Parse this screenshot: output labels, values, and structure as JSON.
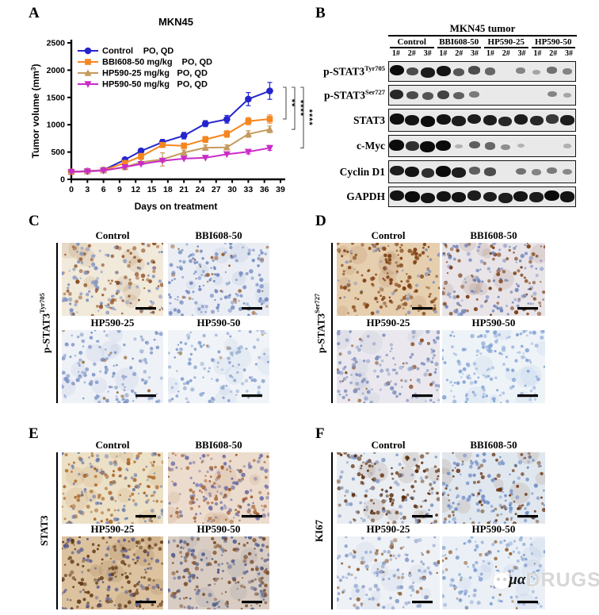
{
  "figure": {
    "panels": {
      "a": "A",
      "b": "B",
      "c": "C",
      "d": "D",
      "e": "E",
      "f": "F"
    },
    "watermark": {
      "logo": "panda-logo",
      "mu": "µα",
      "drugs": "DRUGS"
    }
  },
  "chart_data": {
    "type": "line",
    "title": "MKN45",
    "xlabel": "Days on treatment",
    "ylabel": {
      "pre": "Tumor volume (mm",
      "sup": "3",
      "post": ")"
    },
    "xticks": [
      0,
      3,
      6,
      9,
      12,
      15,
      18,
      21,
      24,
      27,
      30,
      33,
      36,
      39
    ],
    "yticks": [
      0,
      500,
      1000,
      1500,
      2000,
      2500
    ],
    "xlim": [
      0,
      39
    ],
    "ylim": [
      0,
      2500
    ],
    "x": [
      0,
      3,
      6,
      10,
      13,
      17,
      21,
      25,
      29,
      33,
      37
    ],
    "series": [
      {
        "name": "Control",
        "route": "PO, QD",
        "color": "#2424cf",
        "marker": "circle",
        "values": [
          140,
          150,
          170,
          360,
          520,
          680,
          800,
          1020,
          1100,
          1470,
          1620
        ],
        "errors": [
          10,
          10,
          12,
          30,
          45,
          50,
          60,
          55,
          70,
          120,
          155
        ]
      },
      {
        "name": "BBI608-50 mg/kg",
        "route": "PO, QD",
        "color": "#f6861f",
        "marker": "square",
        "values": [
          138,
          148,
          168,
          300,
          420,
          630,
          615,
          730,
          830,
          1065,
          1105
        ],
        "errors": [
          10,
          10,
          12,
          28,
          55,
          45,
          50,
          55,
          60,
          65,
          75
        ]
      },
      {
        "name": "HP590-25 mg/kg",
        "route": "PO, QD",
        "color": "#c59a5d",
        "marker": "triangle-up",
        "values": [
          136,
          148,
          165,
          225,
          315,
          365,
          490,
          580,
          585,
          830,
          915
        ],
        "errors": [
          8,
          10,
          10,
          22,
          30,
          120,
          45,
          50,
          45,
          60,
          60
        ]
      },
      {
        "name": "HP590-50 mg/kg",
        "route": "PO, QD",
        "color": "#ca2cc8",
        "marker": "triangle-down",
        "values": [
          135,
          145,
          160,
          225,
          280,
          340,
          380,
          395,
          460,
          505,
          575
        ],
        "errors": [
          8,
          8,
          10,
          18,
          22,
          28,
          30,
          32,
          35,
          40,
          45
        ]
      }
    ],
    "significance": [
      {
        "label": "**",
        "to_series": 1
      },
      {
        "label": "****",
        "to_series": 2
      },
      {
        "label": "****",
        "to_series": 3
      }
    ],
    "legend_position": "top-left",
    "grid": false
  },
  "blot": {
    "title": "MKN45 tumor",
    "groups": [
      "Control",
      "BBI608-50",
      "HP590-25",
      "HP590-50"
    ],
    "lanes": [
      "1#",
      "2#",
      "3#"
    ],
    "rows": [
      {
        "label": "p-STAT3",
        "sup": "Tyr705",
        "bands": [
          0.95,
          0.6,
          0.85,
          0.9,
          0.55,
          0.6,
          0.45,
          0.0,
          0.3,
          0.12,
          0.4,
          0.3
        ]
      },
      {
        "label": "p-STAT3",
        "sup": "Ser727",
        "bands": [
          0.8,
          0.6,
          0.55,
          0.65,
          0.5,
          0.35,
          0,
          0,
          0,
          0,
          0.3,
          0.12
        ]
      },
      {
        "label": "STAT3",
        "sup": "",
        "bands": [
          0.92,
          0.9,
          0.95,
          0.9,
          0.85,
          0.85,
          0.85,
          0.8,
          0.85,
          0.8,
          0.7,
          0.85
        ]
      },
      {
        "label": "c-Myc",
        "sup": "",
        "bands": [
          1,
          0.75,
          1,
          0.95,
          0.06,
          0.5,
          0.45,
          0.25,
          0.05,
          0,
          0,
          0.06
        ]
      },
      {
        "label": "Cyclin D1",
        "sup": "",
        "bands": [
          0.85,
          0.9,
          0.75,
          0.95,
          0.85,
          0.5,
          0.6,
          0,
          0.4,
          0.3,
          0.35,
          0.28
        ]
      },
      {
        "label": "GAPDH",
        "sup": "",
        "bands": [
          0.9,
          0.95,
          0.9,
          0.9,
          0.9,
          0.85,
          0.85,
          0.85,
          0.9,
          0.85,
          0.95,
          0.9
        ]
      }
    ]
  },
  "ihc_panels": [
    {
      "id": "c",
      "letter": "C",
      "side_label": {
        "base": "p-STAT3",
        "sup": "Tyr705"
      },
      "tiles": [
        {
          "label": "Control",
          "bg": "#f1e9d9",
          "dots": [
            {
              "color": "#8a4a1e",
              "ratio": 0.5
            },
            {
              "color": "#7c8fc2",
              "ratio": 0.5
            }
          ],
          "count": 175
        },
        {
          "label": "BBI608-50",
          "bg": "#eaeef4",
          "dots": [
            {
              "color": "#6e86bf",
              "ratio": 0.85
            },
            {
              "color": "#96592a",
              "ratio": 0.15
            }
          ],
          "count": 170
        },
        {
          "label": "HP590-25",
          "bg": "#eef1f6",
          "dots": [
            {
              "color": "#7d94c6",
              "ratio": 0.92
            },
            {
              "color": "#9a6a3a",
              "ratio": 0.08
            }
          ],
          "count": 140
        },
        {
          "label": "HP590-50",
          "bg": "#f0f4f8",
          "dots": [
            {
              "color": "#87a0cd",
              "ratio": 0.97
            },
            {
              "color": "#a07844",
              "ratio": 0.03
            }
          ],
          "count": 120
        }
      ]
    },
    {
      "id": "d",
      "letter": "D",
      "side_label": {
        "base": "p-STAT3",
        "sup": "Ser727"
      },
      "tiles": [
        {
          "label": "Control",
          "bg": "#e6cfae",
          "dots": [
            {
              "color": "#7c3e10",
              "ratio": 0.8
            },
            {
              "color": "#8794bd",
              "ratio": 0.2
            }
          ],
          "count": 195
        },
        {
          "label": "BBI608-50",
          "bg": "#e8e4e8",
          "dots": [
            {
              "color": "#7a3c10",
              "ratio": 0.45
            },
            {
              "color": "#7285bb",
              "ratio": 0.55
            }
          ],
          "count": 185
        },
        {
          "label": "HP590-25",
          "bg": "#eae8ee",
          "dots": [
            {
              "color": "#7f90bf",
              "ratio": 0.8
            },
            {
              "color": "#8a4a1e",
              "ratio": 0.2
            }
          ],
          "count": 150
        },
        {
          "label": "HP590-50",
          "bg": "#eef3f8",
          "dots": [
            {
              "color": "#83a3d4",
              "ratio": 1.0
            }
          ],
          "count": 140
        }
      ]
    },
    {
      "id": "e",
      "letter": "E",
      "side_label": {
        "base": "STAT3",
        "sup": ""
      },
      "tiles": [
        {
          "label": "Control",
          "bg": "#ece0c6",
          "dots": [
            {
              "color": "#a85f1f",
              "ratio": 0.55
            },
            {
              "color": "#6b7cab",
              "ratio": 0.45
            }
          ],
          "count": 185
        },
        {
          "label": "BBI608-50",
          "bg": "#ecdccd",
          "dots": [
            {
              "color": "#a05a2a",
              "ratio": 0.55
            },
            {
              "color": "#6e6ea6",
              "ratio": 0.45
            }
          ],
          "count": 185
        },
        {
          "label": "HP590-25",
          "bg": "#dcc29e",
          "dots": [
            {
              "color": "#5e3512",
              "ratio": 0.6
            },
            {
              "color": "#585c90",
              "ratio": 0.4
            }
          ],
          "count": 215
        },
        {
          "label": "HP590-50",
          "bg": "#d9cdc3",
          "dots": [
            {
              "color": "#545f8e",
              "ratio": 0.5
            },
            {
              "color": "#7a4820",
              "ratio": 0.5
            }
          ],
          "count": 215
        }
      ]
    },
    {
      "id": "f",
      "letter": "F",
      "side_label": {
        "base": "KI67",
        "sup": ""
      },
      "tiles": [
        {
          "label": "Control",
          "bg": "#eaedf1",
          "dots": [
            {
              "color": "#5a2c09",
              "ratio": 0.6
            },
            {
              "color": "#7e95c4",
              "ratio": 0.4
            }
          ],
          "count": 195
        },
        {
          "label": "BBI608-50",
          "bg": "#e0e7ee",
          "dots": [
            {
              "color": "#6a3410",
              "ratio": 0.45
            },
            {
              "color": "#6e8cc4",
              "ratio": 0.55
            }
          ],
          "count": 185
        },
        {
          "label": "HP590-25",
          "bg": "#eef1f5",
          "dots": [
            {
              "color": "#8a9fcb",
              "ratio": 0.72
            },
            {
              "color": "#8b5a30",
              "ratio": 0.28
            }
          ],
          "count": 140
        },
        {
          "label": "HP590-50",
          "bg": "#eaf0f6",
          "dots": [
            {
              "color": "#7e9dd0",
              "ratio": 0.8
            },
            {
              "color": "#925c28",
              "ratio": 0.2
            }
          ],
          "count": 130
        }
      ]
    }
  ]
}
